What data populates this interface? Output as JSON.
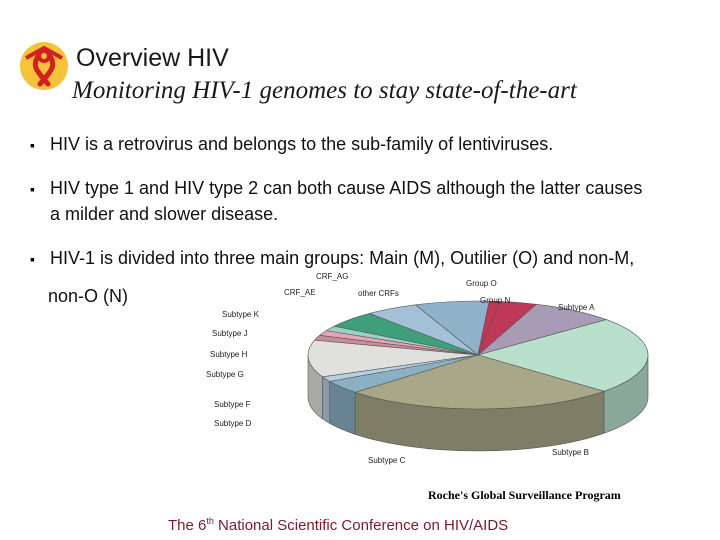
{
  "header": {
    "logo_icon": "red-ribbon-icon",
    "title": "Overview HIV",
    "subtitle": "Monitoring HIV-1 genomes to stay state-of-the-art"
  },
  "bullets": [
    {
      "lines": [
        "HIV is a retrovirus and belongs to the sub-family of lentiviruses."
      ]
    },
    {
      "lines": [
        "HIV type 1 and HIV type 2 can both cause AIDS although the latter causes",
        "a milder and slower disease."
      ]
    },
    {
      "lines": [
        "HIV-1 is divided into three main groups: Main (M), Outilier (O) and non-M,",
        "non-O (N)"
      ]
    }
  ],
  "chart_data": {
    "type": "pie",
    "title": "",
    "labels": [
      "Subtype A",
      "Subtype B",
      "Subtype C",
      "Subtype D",
      "Subtype F",
      "Subtype G",
      "Subtype H",
      "Subtype J",
      "Subtype K",
      "CRF_AE",
      "CRF_AG",
      "other CRFs",
      "Group N",
      "Group O"
    ],
    "values": [
      8,
      23,
      26,
      4,
      1.5,
      11,
      1.5,
      1.5,
      1.5,
      5,
      5,
      7,
      1,
      3.5
    ],
    "colors": [
      "#a99bb5",
      "#b8e0cc",
      "#a8a888",
      "#8ab0c4",
      "#b7cfe2",
      "#e0e0dc",
      "#c58e9a",
      "#e8a4b4",
      "#9ad0c8",
      "#3f9f7a",
      "#a4c0d6",
      "#8fb2c8",
      "#c03858",
      "#c03858"
    ],
    "legend": "none"
  },
  "source": "Roche's Global Surveillance Program",
  "footer": {
    "prefix": "The 6",
    "sup": "th",
    "suffix": " National Scientific Conference on HIV/AIDS"
  }
}
